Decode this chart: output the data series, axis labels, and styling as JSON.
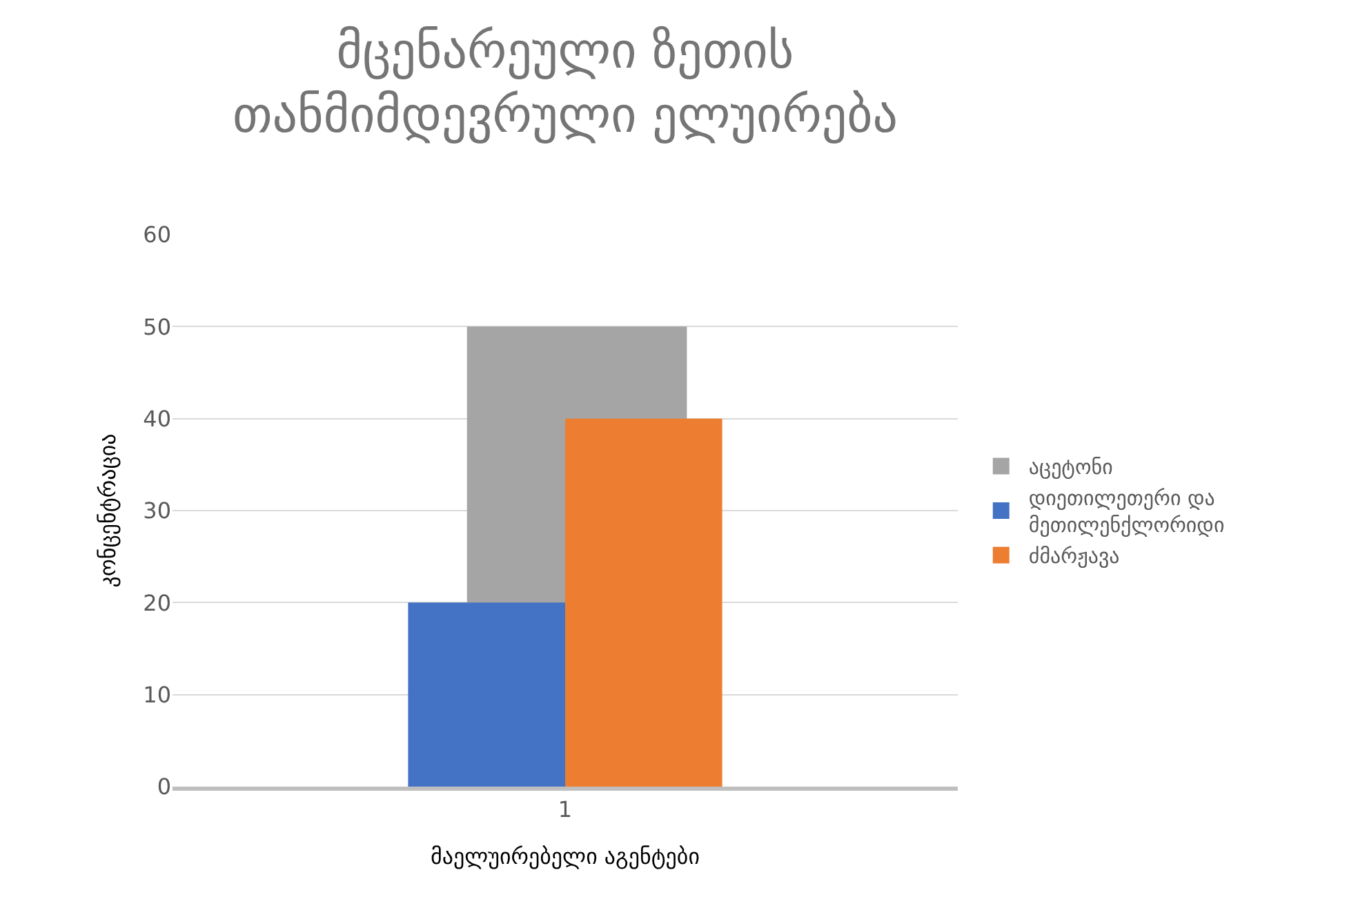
{
  "chart_data": {
    "type": "bar",
    "title": "მცენარეული ზეთის თანმიმდევრული ელუირება",
    "xlabel": "მაელუირებელი აგენტები",
    "ylabel": "კონცენტრაცია",
    "categories": [
      "1"
    ],
    "series": [
      {
        "name": "აცეტონი",
        "color": "#a5a5a5",
        "values": [
          50
        ]
      },
      {
        "name": "დიეთილეთერი და მეთილენქლორიდი",
        "color": "#4472c4",
        "values": [
          20
        ]
      },
      {
        "name": "ძმარჟავა",
        "color": "#ed7d31",
        "values": [
          40
        ]
      }
    ],
    "ylim": [
      0,
      60
    ],
    "yticks": [
      0,
      10,
      20,
      30,
      40,
      50,
      60
    ],
    "grid": "y",
    "legend": "right"
  }
}
